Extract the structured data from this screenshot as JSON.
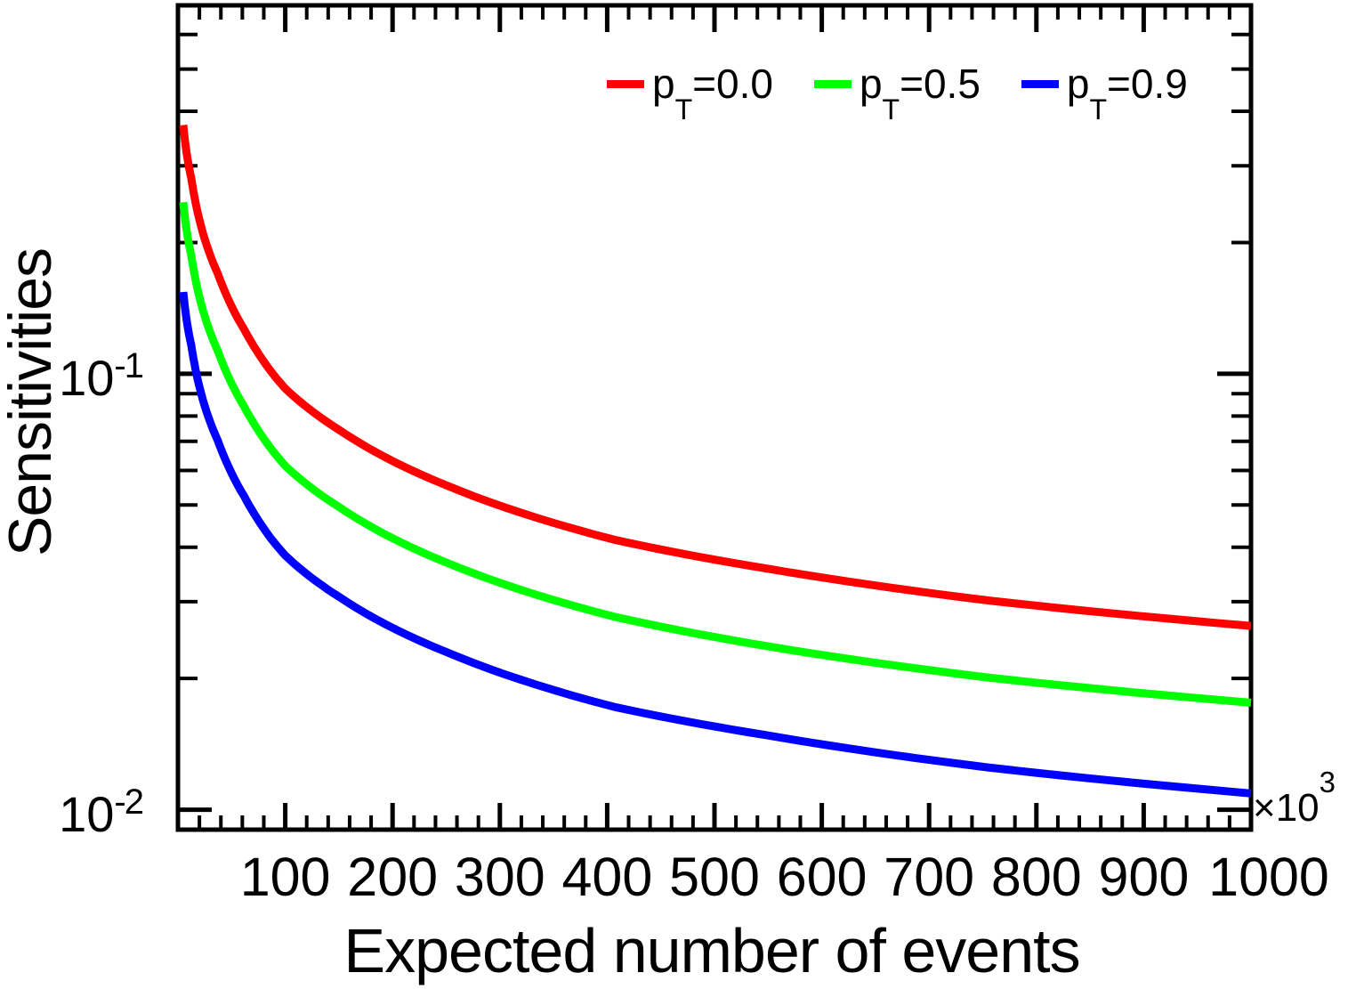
{
  "page": {
    "background": "#ffffff",
    "frame_color": "#000000",
    "text_color": "#000000"
  },
  "legend": {
    "entries": [
      {
        "id": "pt-0.0",
        "prefix": "p",
        "sub": "T",
        "rest": "=0.0",
        "color": "#ff0000"
      },
      {
        "id": "pt-0.5",
        "prefix": "p",
        "sub": "T",
        "rest": "=0.5",
        "color": "#00ff00"
      },
      {
        "id": "pt-0.9",
        "prefix": "p",
        "sub": "T",
        "rest": "=0.9",
        "color": "#0000ff"
      }
    ]
  },
  "chart_data": {
    "type": "line",
    "title": "",
    "xlabel": "Expected number of events",
    "ylabel": "Sensitivities",
    "xscale": "linear",
    "yscale": "log",
    "xlim": [
      0,
      1000
    ],
    "ylim": [
      0.009,
      0.7
    ],
    "x_unit": {
      "base": "×10",
      "exp": "3"
    },
    "x_major_ticks": [
      100,
      200,
      300,
      400,
      500,
      600,
      700,
      800,
      900,
      1000
    ],
    "x_tick_labels": [
      "100",
      "200",
      "300",
      "400",
      "500",
      "600",
      "700",
      "800",
      "900",
      "1000"
    ],
    "x_minor_step": 20,
    "y_major_ticks": [
      0.1,
      0.01
    ],
    "y_tick_labels": [
      {
        "base": "10",
        "exp": "-1",
        "value": 0.1
      },
      {
        "base": "10",
        "exp": "-2",
        "value": 0.01
      }
    ],
    "y_minor_ticks": [
      0.02,
      0.03,
      0.04,
      0.05,
      0.06,
      0.07,
      0.08,
      0.09,
      0.2,
      0.3,
      0.4,
      0.5,
      0.6
    ],
    "grid": false,
    "legend_position": "top-center",
    "series": [
      {
        "name": "pT=0.0",
        "color": "#ff0000",
        "points": [
          [
            5,
            0.372
          ],
          [
            8,
            0.322
          ],
          [
            12.4,
            0.281
          ],
          [
            20.7,
            0.222
          ],
          [
            37,
            0.17
          ],
          [
            62,
            0.126
          ],
          [
            87,
            0.101
          ],
          [
            100,
            0.0925
          ],
          [
            150,
            0.0744
          ],
          [
            250,
            0.0555
          ],
          [
            407,
            0.0416
          ],
          [
            550,
            0.0357
          ],
          [
            755,
            0.0302
          ],
          [
            1000,
            0.0264
          ]
        ]
      },
      {
        "name": "pT=0.5",
        "color": "#00ff00",
        "points": [
          [
            5,
            0.2474
          ],
          [
            8,
            0.2141
          ],
          [
            12.4,
            0.1869
          ],
          [
            20.7,
            0.1476
          ],
          [
            37,
            0.1131
          ],
          [
            62,
            0.0838
          ],
          [
            87,
            0.0672
          ],
          [
            100,
            0.0615
          ],
          [
            150,
            0.0495
          ],
          [
            250,
            0.0369
          ],
          [
            407,
            0.0277
          ],
          [
            550,
            0.0237
          ],
          [
            755,
            0.0201
          ],
          [
            1000,
            0.0176
          ]
        ]
      },
      {
        "name": "pT=0.9",
        "color": "#0000ff",
        "points": [
          [
            5,
            0.154
          ],
          [
            8,
            0.1333
          ],
          [
            12.4,
            0.1163
          ],
          [
            20.7,
            0.0919
          ],
          [
            37,
            0.0704
          ],
          [
            62,
            0.0522
          ],
          [
            87,
            0.0418
          ],
          [
            100,
            0.0383
          ],
          [
            150,
            0.0308
          ],
          [
            250,
            0.023
          ],
          [
            407,
            0.0172
          ],
          [
            550,
            0.0148
          ],
          [
            755,
            0.0125
          ],
          [
            1000,
            0.0109
          ]
        ]
      }
    ]
  }
}
